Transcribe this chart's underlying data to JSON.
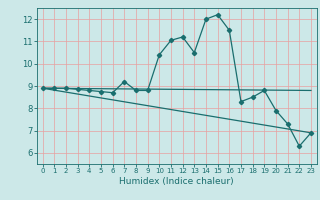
{
  "title": "",
  "xlabel": "Humidex (Indice chaleur)",
  "ylabel": "",
  "background_color": "#cce8e8",
  "grid_color_v": "#e8a0a0",
  "grid_color_h": "#e8a0a0",
  "line_color": "#1a6e6e",
  "xlim": [
    -0.5,
    23.5
  ],
  "ylim": [
    5.5,
    12.5
  ],
  "xticks": [
    0,
    1,
    2,
    3,
    4,
    5,
    6,
    7,
    8,
    9,
    10,
    11,
    12,
    13,
    14,
    15,
    16,
    17,
    18,
    19,
    20,
    21,
    22,
    23
  ],
  "yticks": [
    6,
    7,
    8,
    9,
    10,
    11,
    12
  ],
  "series1_x": [
    0,
    1,
    2,
    3,
    4,
    5,
    6,
    7,
    8,
    9,
    10,
    11,
    12,
    13,
    14,
    15,
    16,
    17,
    18,
    19,
    20,
    21,
    22,
    23
  ],
  "series1_y": [
    8.9,
    8.9,
    8.9,
    8.85,
    8.8,
    8.75,
    8.7,
    9.2,
    8.8,
    8.8,
    10.4,
    11.05,
    11.2,
    10.5,
    12.0,
    12.2,
    11.5,
    8.3,
    8.5,
    8.8,
    7.9,
    7.3,
    6.3,
    6.9
  ],
  "series2_x": [
    0,
    23
  ],
  "series2_y": [
    8.9,
    8.8
  ],
  "series3_x": [
    0,
    23
  ],
  "series3_y": [
    8.9,
    6.9
  ],
  "marker": "D",
  "markersize": 2.2,
  "linewidth": 0.9
}
